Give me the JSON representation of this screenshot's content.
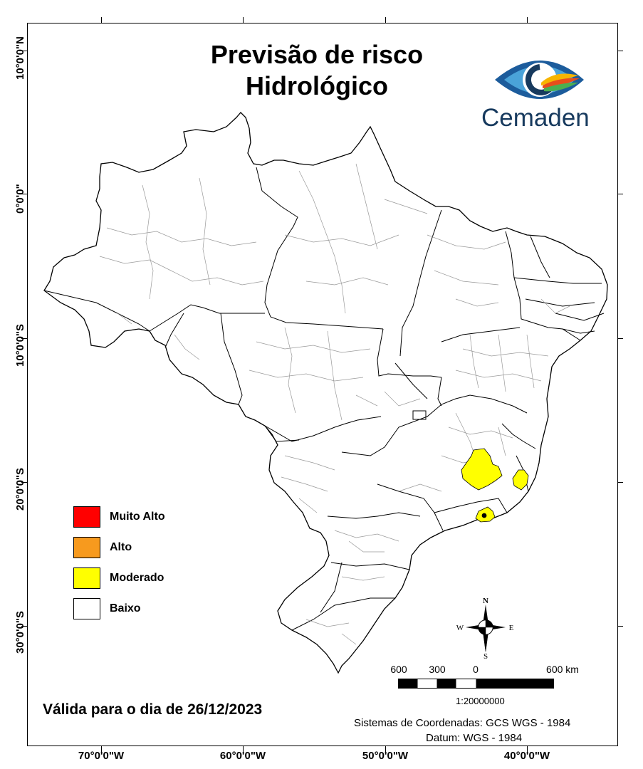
{
  "title": {
    "line1": "Previsão de risco",
    "line2": "Hidrológico"
  },
  "logo": {
    "text": "Cemaden",
    "brand_color": "#173a5e",
    "accent_colors": [
      "#1c5c9c",
      "#4aa3d9",
      "#4caf50",
      "#e94e1b",
      "#f7b500"
    ]
  },
  "axes": {
    "longitude_labels": [
      "70°0'0\"W",
      "60°0'0\"W",
      "50°0'0\"W",
      "40°0'0\"W"
    ],
    "latitude_labels": [
      "10°0'0\"N",
      "0°0'0\"",
      "10°0'0\"S",
      "20°0'0\"S",
      "30°0'0\"S"
    ]
  },
  "legend": {
    "items": [
      {
        "label": "Muito Alto",
        "color": "#ff0000"
      },
      {
        "label": "Alto",
        "color": "#f79a1e"
      },
      {
        "label": "Moderado",
        "color": "#ffff00"
      },
      {
        "label": "Baixo",
        "color": "#ffffff"
      }
    ]
  },
  "map": {
    "country": "Brasil",
    "moderate_color": "#ffff00",
    "base_color": "#ffffff"
  },
  "compass": {
    "n": "N",
    "s": "S",
    "e": "E",
    "w": "W",
    "icon": "north-arrow-icon"
  },
  "scalebar": {
    "labels": [
      "600",
      "300",
      "0",
      "600 km"
    ],
    "ratio": "1:20000000"
  },
  "footer": {
    "valid_for": "Válida para o dia de 26/12/2023",
    "coord_system": "Sistemas de Coordenadas: GCS WGS - 1984",
    "datum": "Datum: WGS - 1984"
  }
}
